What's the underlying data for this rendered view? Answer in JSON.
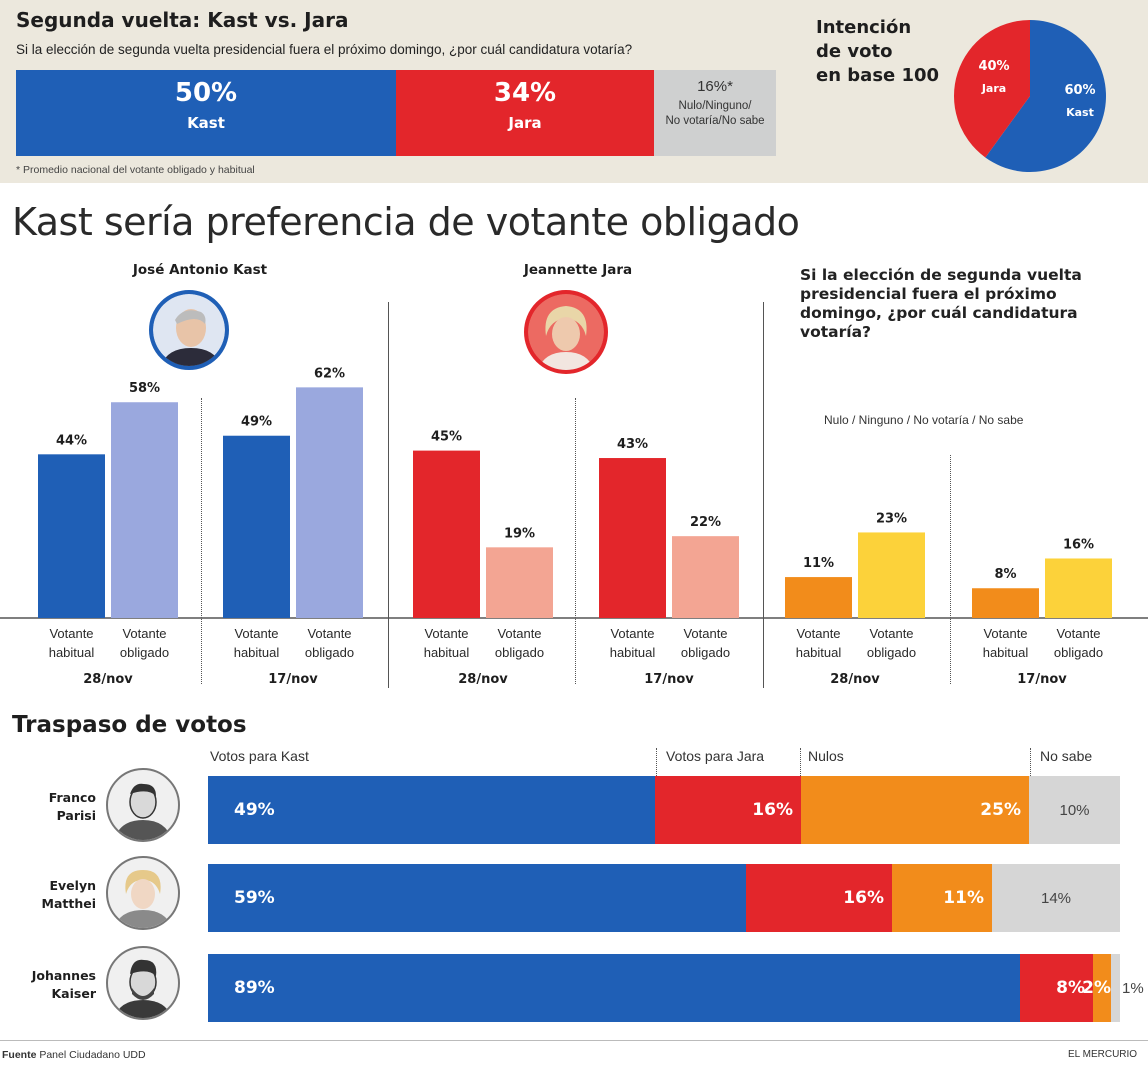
{
  "header": {
    "title": "Segunda vuelta: Kast vs. Jara",
    "question": "Si la elección de segunda vuelta presidencial fuera el próximo domingo, ¿por cuál candidatura votaría?",
    "footnote": "* Promedio nacional del votante obligado y habitual",
    "bar": [
      {
        "pct": "50%",
        "label": "Kast",
        "value": 50,
        "color": "#1f5fb6"
      },
      {
        "pct": "34%",
        "label": "Jara",
        "value": 34,
        "color": "#e3262b"
      },
      {
        "pct": "16%*",
        "label_lines": [
          "Nulo/Ninguno/",
          "No votaría/No sabe"
        ],
        "value": 16,
        "color": "#cfd0d0"
      }
    ]
  },
  "pie": {
    "title_lines": [
      "Intención",
      "de voto",
      "en base 100"
    ],
    "slices": [
      {
        "pct": "60%",
        "label": "Kast",
        "value": 60,
        "color": "#1f5fb6"
      },
      {
        "pct": "40%",
        "label": "Jara",
        "value": 40,
        "color": "#e3262b"
      }
    ]
  },
  "main_title": "Kast sería preferencia de votante obligado",
  "candidates": {
    "kast": "José Antonio Kast",
    "jara": "Jeannette Jara",
    "question_lines": [
      "Si la elección de segunda vuelta",
      "presidencial fuera el próximo",
      "domingo, ¿por cuál candidatura",
      "votaría?"
    ],
    "nulo_label": "Nulo / Ninguno / No votaría / No sabe"
  },
  "chart_data": {
    "type": "bar",
    "y_unit": "%",
    "ylim": [
      0,
      70
    ],
    "categories_lines": [
      [
        "Votante",
        "habitual"
      ],
      [
        "Votante",
        "obligado"
      ]
    ],
    "groups": [
      {
        "panel": "José Antonio Kast",
        "date": "28/nov",
        "values": [
          44,
          58
        ],
        "labels": [
          "44%",
          "58%"
        ],
        "colors": [
          "#1f5fb6",
          "#9aa8de"
        ]
      },
      {
        "panel": "José Antonio Kast",
        "date": "17/nov",
        "values": [
          49,
          62
        ],
        "labels": [
          "49%",
          "62%"
        ],
        "colors": [
          "#1f5fb6",
          "#9aa8de"
        ]
      },
      {
        "panel": "Jeannette Jara",
        "date": "28/nov",
        "values": [
          45,
          19
        ],
        "labels": [
          "45%",
          "19%"
        ],
        "colors": [
          "#e3262b",
          "#f3a593"
        ]
      },
      {
        "panel": "Jeannette Jara",
        "date": "17/nov",
        "values": [
          43,
          22
        ],
        "labels": [
          "43%",
          "22%"
        ],
        "colors": [
          "#e3262b",
          "#f3a593"
        ]
      },
      {
        "panel": "Nulo / Ninguno / No votaría / No sabe",
        "date": "28/nov",
        "values": [
          11,
          23
        ],
        "labels": [
          "11%",
          "23%"
        ],
        "colors": [
          "#f28c1b",
          "#fcd23a"
        ]
      },
      {
        "panel": "Nulo / Ninguno / No votaría / No sabe",
        "date": "17/nov",
        "values": [
          8,
          16
        ],
        "labels": [
          "8%",
          "16%"
        ],
        "colors": [
          "#f28c1b",
          "#fcd23a"
        ]
      }
    ]
  },
  "transfer": {
    "title": "Traspaso de votos",
    "headers": [
      "Votos para Kast",
      "Votos para Jara",
      "Nulos",
      "No sabe"
    ],
    "colors": [
      "#1f5fb6",
      "#e3262b",
      "#f28c1b",
      "#d6d6d6"
    ],
    "rows": [
      {
        "name_lines": [
          "Franco",
          "Parisi"
        ],
        "values": [
          49,
          16,
          25,
          10
        ],
        "labels": [
          "49%",
          "16%",
          "25%",
          "10%"
        ]
      },
      {
        "name_lines": [
          "Evelyn",
          "Matthei"
        ],
        "values": [
          59,
          16,
          11,
          14
        ],
        "labels": [
          "59%",
          "16%",
          "11%",
          "14%"
        ]
      },
      {
        "name_lines": [
          "Johannes",
          "Kaiser"
        ],
        "values": [
          89,
          8,
          2,
          1
        ],
        "labels": [
          "89%",
          "8%",
          "2%",
          "1%"
        ]
      }
    ]
  },
  "footer": {
    "source_label": "Fuente",
    "source": "Panel Ciudadano UDD",
    "brand": "EL MERCURIO"
  }
}
